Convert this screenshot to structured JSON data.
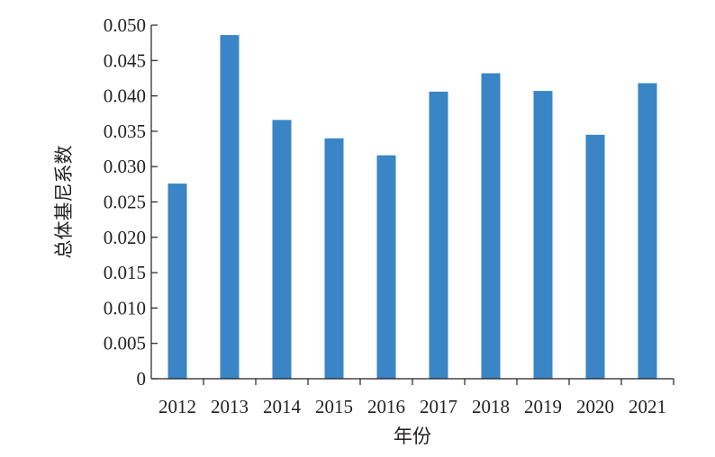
{
  "chart_data": {
    "type": "bar",
    "title": "",
    "xlabel": "年份",
    "ylabel": "总体基尼系数",
    "categories": [
      "2012",
      "2013",
      "2014",
      "2015",
      "2016",
      "2017",
      "2018",
      "2019",
      "2020",
      "2021"
    ],
    "values": [
      0.0276,
      0.0486,
      0.0366,
      0.034,
      0.0316,
      0.0406,
      0.0432,
      0.0407,
      0.0345,
      0.0418
    ],
    "ylim": [
      0,
      0.05
    ],
    "yticks": [
      "0",
      "0.005",
      "0.010",
      "0.015",
      "0.020",
      "0.025",
      "0.030",
      "0.035",
      "0.040",
      "0.045",
      "0.050"
    ],
    "grid": false,
    "legend": "none",
    "bar_color": "#3a85c6",
    "axis_color": "#231f20"
  }
}
